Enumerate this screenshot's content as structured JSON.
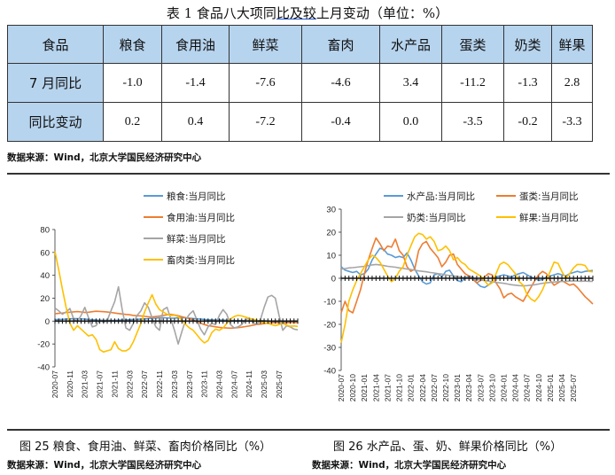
{
  "title": {
    "part1": "表 1  食品八大项同",
    "part2": "比及较",
    "part3": "上月变动（单位：%）"
  },
  "table": {
    "headers": [
      "食品",
      "粮食",
      "食用油",
      "鲜菜",
      "畜肉",
      "水产品",
      "蛋类",
      "奶类",
      "鲜果"
    ],
    "rows": [
      {
        "label": "7 月同比",
        "values": [
          "-1.0",
          "-1.4",
          "-7.6",
          "-4.6",
          "3.4",
          "-11.2",
          "-1.3",
          "2.8"
        ]
      },
      {
        "label": "同比变动",
        "values": [
          "0.2",
          "0.4",
          "-7.2",
          "-0.4",
          "0.0",
          "-3.5",
          "-0.2",
          "-3.3"
        ]
      }
    ]
  },
  "source_table": "数据来源：Wind，北京大学国民经济研究中心",
  "source_left": "数据来源：Wind，北京大学国民经济研究中心",
  "source_right": "数据来源：Wind，北京大学国民经济研究中心",
  "caption_left": "图 25  粮食、食用油、鲜菜、畜肉价格同比（%）",
  "caption_right": "图 26 水产品、蛋、奶、鲜果价格同比（%）",
  "colors": {
    "blue": "#5b9bd5",
    "orange": "#ed7d31",
    "gray": "#a5a5a5",
    "yellow": "#ffc000",
    "header_bg": "#b7d4ee"
  },
  "chart_data": [
    {
      "type": "line",
      "title": "",
      "x_ticks": [
        "2020-07",
        "2020-11",
        "2021-03",
        "2021-07",
        "2021-11",
        "2022-03",
        "2022-07",
        "2022-11",
        "2023-03",
        "2023-07",
        "2023-11",
        "2024-03",
        "2024-07",
        "2024-11",
        "2025-03",
        "2025-07"
      ],
      "x_start": "2020-07",
      "ylim": [
        -40,
        80
      ],
      "y_ticks": [
        -40,
        -20,
        0,
        20,
        40,
        60,
        80
      ],
      "legend_position": "top-right",
      "series": [
        {
          "name": "粮食:当月同比",
          "color": "#5b9bd5",
          "values": [
            1.3,
            1.5,
            1.6,
            1.8,
            2.0,
            2.2,
            2.1,
            2.0,
            1.8,
            1.5,
            1.2,
            1.0,
            0.8,
            0.6,
            0.7,
            0.5,
            0.7,
            0.8,
            1.0,
            1.2,
            1.3,
            1.5,
            1.6,
            1.8,
            2.0,
            2.2,
            2.5,
            2.6,
            2.9,
            3.0,
            2.7,
            2.5,
            2.6,
            2.8,
            3.0,
            2.9,
            2.6,
            2.3,
            2.0,
            1.8,
            1.5,
            1.2,
            1.1,
            1.0,
            1.1,
            0.9,
            0.8,
            0.6,
            0.5,
            0.4,
            0.5,
            0.3,
            0.2,
            0.1,
            0.3,
            0.4,
            0.2,
            0.0,
            -0.2,
            -0.3,
            -0.4,
            -0.6,
            -0.7,
            -0.8,
            -0.9,
            -1.0
          ]
        },
        {
          "name": "食用油:当月同比",
          "color": "#ed7d31",
          "values": [
            6.4,
            6.8,
            7.0,
            7.5,
            7.8,
            8.1,
            8.3,
            8.0,
            7.5,
            7.8,
            8.2,
            8.6,
            8.5,
            8.2,
            7.9,
            7.5,
            7.1,
            6.6,
            6.2,
            5.8,
            5.5,
            5.0,
            4.7,
            4.5,
            4.1,
            3.8,
            3.6,
            4.0,
            4.4,
            5.0,
            5.5,
            5.8,
            5.4,
            4.7,
            3.8,
            3.0,
            2.2,
            1.0,
            -0.5,
            -1.8,
            -3.0,
            -4.0,
            -4.5,
            -5.0,
            -5.5,
            -5.8,
            -6.0,
            -6.2,
            -6.0,
            -5.7,
            -5.3,
            -4.8,
            -4.2,
            -3.6,
            -3.0,
            -2.6,
            -2.2,
            -1.8,
            -1.5,
            -1.3,
            -1.6,
            -2.0,
            -1.5,
            -1.2,
            -1.3,
            -1.4
          ]
        },
        {
          "name": "鲜菜:当月同比",
          "color": "#a5a5a5",
          "values": [
            11.5,
            9.0,
            6.0,
            8.0,
            11.0,
            2.0,
            -0.5,
            5.0,
            12.0,
            3.0,
            -5.0,
            -4.0,
            1.0,
            -1.0,
            0.5,
            9.0,
            17.0,
            30.0,
            10.0,
            -6.0,
            -8.0,
            -2.0,
            5.0,
            9.0,
            16.0,
            12.0,
            3.0,
            -5.0,
            -8.0,
            10.0,
            12.0,
            2.0,
            -8.0,
            -20.0,
            -9.0,
            1.0,
            6.0,
            9.0,
            1.0,
            -7.0,
            -12.0,
            -5.0,
            -2.0,
            -3.0,
            5.0,
            10.0,
            6.0,
            -3.0,
            -6.0,
            -5.0,
            -3.0,
            1.0,
            3.0,
            -1.0,
            -3.0,
            1.0,
            12.0,
            21.0,
            22.5,
            20.0,
            5.0,
            -8.0,
            -4.0,
            -5.0,
            -7.0,
            -7.6
          ]
        },
        {
          "name": "畜肉类:当月同比",
          "color": "#ffc000",
          "values": [
            61.0,
            45.0,
            28.0,
            12.0,
            -2.0,
            -8.0,
            -4.0,
            -7.0,
            -10.0,
            -13.0,
            -12.0,
            -16.0,
            -25.0,
            -27.0,
            -26.0,
            -25.0,
            -18.0,
            -24.0,
            -26.0,
            -26.0,
            -24.0,
            -18.0,
            -10.0,
            -2.0,
            8.0,
            16.0,
            23.0,
            15.0,
            10.0,
            8.0,
            6.0,
            5.0,
            5.0,
            4.0,
            1.0,
            -3.0,
            -6.0,
            -8.0,
            -12.0,
            -16.0,
            -19.0,
            -17.0,
            -10.0,
            -7.0,
            -8.0,
            -6.0,
            -2.0,
            2.0,
            4.0,
            5.0,
            4.5,
            3.5,
            2.5,
            1.5,
            1.0,
            -0.5,
            -1.5,
            -2.0,
            -3.0,
            -4.0,
            -3.0,
            -2.0,
            -3.5,
            -4.5,
            -4.2,
            -4.6
          ]
        }
      ]
    },
    {
      "type": "line",
      "title": "",
      "x_ticks": [
        "2020-07",
        "2020-10",
        "2021-01",
        "2021-04",
        "2021-07",
        "2021-10",
        "2022-01",
        "2022-04",
        "2022-07",
        "2022-10",
        "2023-01",
        "2023-04",
        "2023-07",
        "2023-10",
        "2024-01",
        "2024-04",
        "2024-07",
        "2024-10",
        "2025-01",
        "2025-04",
        "2025-07"
      ],
      "x_start": "2020-07",
      "ylim": [
        -40,
        30
      ],
      "y_ticks": [
        -40,
        -30,
        -20,
        -10,
        0,
        10,
        20,
        30
      ],
      "legend_position": "top",
      "series": [
        {
          "name": "水产品:当月同比",
          "color": "#5b9bd5",
          "values": [
            5.0,
            3.5,
            3.0,
            2.5,
            3.0,
            1.5,
            2.0,
            4.0,
            8.0,
            10.5,
            13.0,
            12.5,
            10.5,
            10.0,
            9.0,
            9.5,
            9.0,
            11.0,
            8.0,
            4.0,
            1.0,
            -1.5,
            -2.5,
            -2.0,
            1.5,
            2.0,
            0.5,
            3.0,
            3.5,
            1.0,
            -1.0,
            -1.5,
            0.0,
            1.0,
            0.5,
            -2.0,
            -3.5,
            -4.0,
            -3.0,
            -1.5,
            0.5,
            1.0,
            1.5,
            1.0,
            0.5,
            1.5,
            2.0,
            2.5,
            1.5,
            0.5,
            0.0,
            -1.0,
            -0.5,
            0.5,
            1.0,
            1.5,
            2.0,
            1.5,
            1.0,
            2.0,
            2.5,
            3.0,
            2.5,
            3.0,
            3.2,
            3.4
          ]
        },
        {
          "name": "蛋类:当月同比",
          "color": "#ed7d31",
          "values": [
            -15.0,
            -10.0,
            -14.0,
            -15.0,
            -10.0,
            -5.0,
            2.0,
            8.0,
            13.0,
            17.5,
            15.0,
            12.0,
            14.0,
            13.5,
            17.0,
            12.0,
            10.0,
            5.0,
            3.0,
            4.0,
            12.0,
            15.0,
            16.0,
            13.0,
            11.0,
            9.0,
            5.0,
            7.0,
            10.0,
            10.5,
            6.0,
            4.0,
            2.0,
            1.0,
            -0.5,
            -2.0,
            -1.0,
            0.5,
            2.0,
            1.5,
            -2.0,
            -4.5,
            -8.5,
            -7.0,
            -6.5,
            -8.0,
            -9.0,
            -10.0,
            -7.0,
            -4.0,
            -1.0,
            1.5,
            3.0,
            2.0,
            -1.0,
            -3.0,
            -2.0,
            -1.0,
            -2.0,
            -3.0,
            -2.5,
            -4.0,
            -6.0,
            -8.0,
            -9.5,
            -11.2
          ]
        },
        {
          "name": "奶类:当月同比",
          "color": "#a5a5a5",
          "values": [
            4.0,
            4.2,
            4.5,
            4.6,
            4.8,
            5.0,
            5.2,
            5.5,
            5.8,
            6.0,
            5.8,
            5.5,
            5.2,
            5.0,
            4.8,
            4.5,
            4.3,
            4.0,
            3.8,
            3.5,
            3.2,
            3.0,
            2.8,
            2.5,
            2.3,
            2.0,
            1.8,
            1.5,
            1.2,
            1.0,
            0.8,
            0.5,
            0.3,
            0.0,
            -0.3,
            -0.5,
            -0.8,
            -1.0,
            -1.2,
            -1.5,
            -1.8,
            -2.0,
            -2.2,
            -2.5,
            -2.8,
            -3.0,
            -3.2,
            -3.3,
            -3.2,
            -3.0,
            -2.8,
            -2.5,
            -2.2,
            -2.0,
            -1.8,
            -1.6,
            -1.5,
            -1.4,
            -1.3,
            -1.2,
            -1.1,
            -1.2,
            -1.3,
            -1.2,
            -1.3,
            -1.3
          ]
        },
        {
          "name": "鲜果:当月同比",
          "color": "#ffc000",
          "values": [
            -28.0,
            -20.0,
            -10.0,
            -5.0,
            -1.0,
            2.0,
            5.0,
            8.0,
            10.0,
            9.0,
            7.0,
            4.0,
            1.0,
            -1.5,
            0.0,
            3.0,
            5.0,
            10.0,
            14.0,
            18.0,
            19.5,
            19.0,
            17.0,
            18.0,
            16.0,
            12.0,
            12.5,
            14.0,
            12.0,
            8.0,
            9.0,
            7.0,
            6.0,
            4.0,
            3.0,
            2.0,
            1.0,
            -1.0,
            -3.0,
            -2.0,
            2.0,
            6.0,
            7.0,
            6.0,
            4.0,
            2.0,
            -1.5,
            -3.0,
            -7.0,
            -9.0,
            -10.0,
            -8.0,
            -5.0,
            -1.0,
            3.0,
            7.0,
            6.5,
            3.0,
            0.0,
            2.0,
            4.5,
            6.0,
            6.0,
            5.5,
            3.0,
            2.8
          ]
        }
      ]
    }
  ]
}
